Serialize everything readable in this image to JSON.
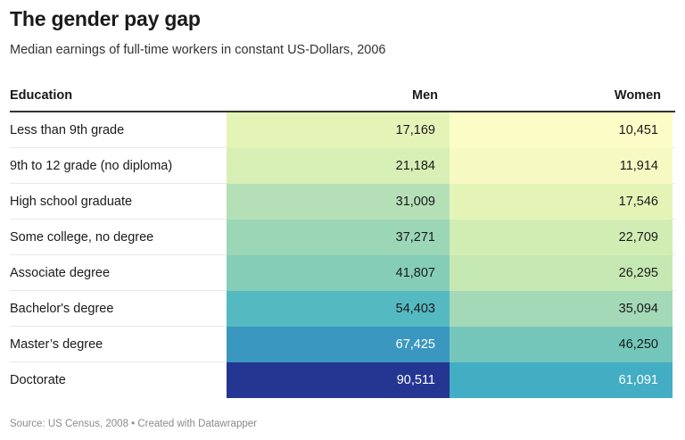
{
  "title": "The gender pay gap",
  "subtitle": "Median earnings of full-time workers in constant US-Dollars, 2006",
  "footer": "Source: US Census, 2008 • Created with Datawrapper",
  "chart_data": {
    "type": "table",
    "title": "The gender pay gap",
    "subtitle": "Median earnings of full-time workers in constant US-Dollars, 2006",
    "columns": [
      "Education",
      "Men",
      "Women"
    ],
    "rows": [
      {
        "education": "Less than 9th grade",
        "men": "17,169",
        "women": "10,451",
        "men_color": "#e4f4b7",
        "women_color": "#fbfcc6",
        "men_text": "#1a1a1a",
        "women_text": "#1a1a1a"
      },
      {
        "education": "9th to 12 grade (no diploma)",
        "men": "21,184",
        "women": "11,914",
        "men_color": "#d7efb4",
        "women_color": "#f6fac2",
        "men_text": "#1a1a1a",
        "women_text": "#1a1a1a"
      },
      {
        "education": "High school graduate",
        "men": "31,009",
        "women": "17,546",
        "men_color": "#b5e0b7",
        "women_color": "#e4f4b7",
        "men_text": "#1a1a1a",
        "women_text": "#1a1a1a"
      },
      {
        "education": "Some college, no degree",
        "men": "37,271",
        "women": "22,709",
        "men_color": "#9bd6b7",
        "women_color": "#d2edb3",
        "men_text": "#1a1a1a",
        "women_text": "#1a1a1a"
      },
      {
        "education": "Associate degree",
        "men": "41,807",
        "women": "26,295",
        "men_color": "#86cdb8",
        "women_color": "#c5e8b3",
        "men_text": "#1a1a1a",
        "women_text": "#1a1a1a"
      },
      {
        "education": "Bachelor's degree",
        "men": "54,403",
        "women": "35,094",
        "men_color": "#55b9c2",
        "women_color": "#a3d9b6",
        "men_text": "#1a1a1a",
        "women_text": "#1a1a1a"
      },
      {
        "education": "Master’s degree",
        "men": "67,425",
        "women": "46,250",
        "men_color": "#3a97c0",
        "women_color": "#74c6bb",
        "men_text": "#ffffff",
        "women_text": "#1a1a1a"
      },
      {
        "education": "Doctorate",
        "men": "90,511",
        "women": "61,091",
        "men_color": "#243592",
        "women_color": "#42adc3",
        "men_text": "#ffffff",
        "women_text": "#ffffff"
      }
    ]
  }
}
